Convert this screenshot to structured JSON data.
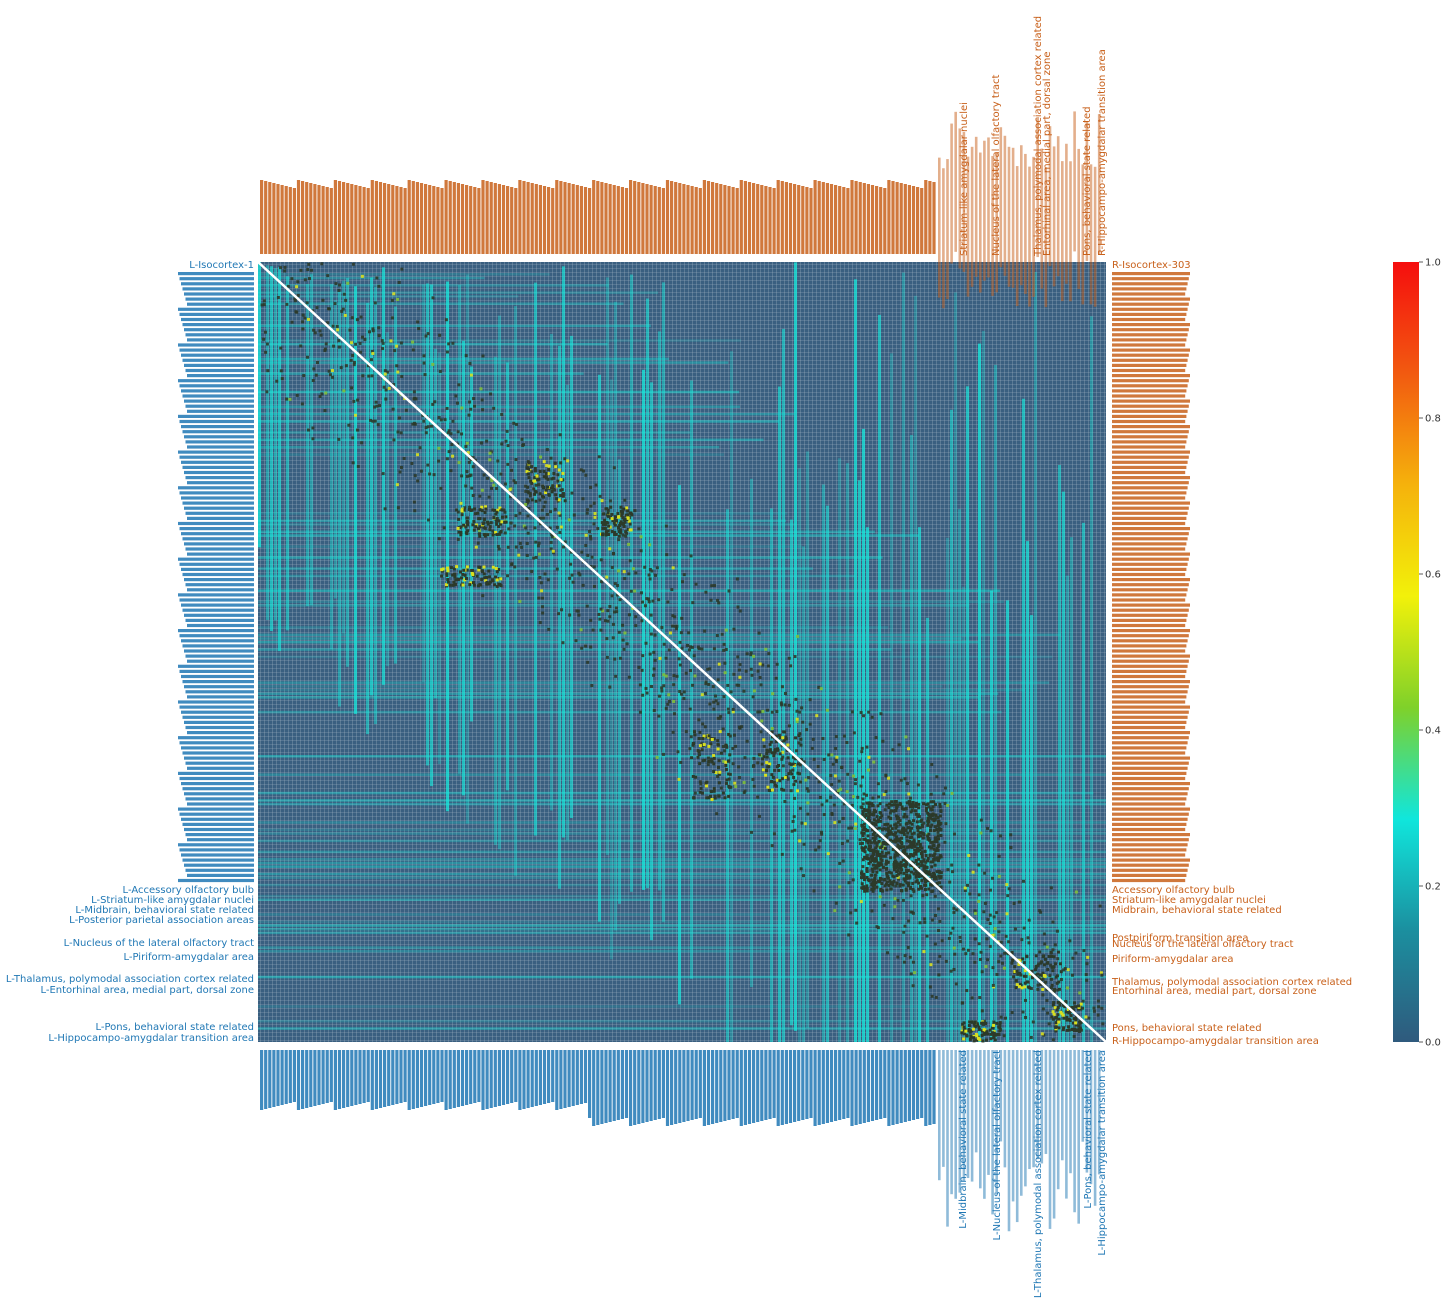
{
  "colors": {
    "left_label": "#1f77b4",
    "right_label": "#c8601a",
    "background_cell": "#3a5f80",
    "grid_line": "#ffffff"
  },
  "chart_data": {
    "type": "heatmap",
    "title": "",
    "grid": true,
    "value_range": [
      0,
      1
    ],
    "colorbar": {
      "ticks": [
        0.0,
        0.2,
        0.4,
        0.6,
        0.8,
        1.0
      ],
      "tick_labels": [
        "0.0",
        "0.2",
        "0.4",
        "0.6",
        "0.8",
        "1.0"
      ],
      "stops": [
        "#2f5a7d",
        "#1b8f9f",
        "#10e6dc",
        "#7fd12a",
        "#f2f10a",
        "#f5b20c",
        "#f25a10",
        "#f50e0e"
      ],
      "placement": "right"
    },
    "left_labels_visible": [
      "L-Isocortex-1",
      "L-Accessory olfactory bulb",
      "L-Striatum-like amygdalar nuclei",
      "L-Midbrain, behavioral state related",
      "L-Posterior parietal association areas",
      "L-Nucleus of the lateral olfactory tract",
      "L-Piriform-amygdalar area",
      "L-Thalamus, polymodal association cortex related",
      "L-Entorhinal area, medial part, dorsal zone",
      "L-Pons, behavioral state related",
      "L-Hippocampo-amygdalar transition area"
    ],
    "right_labels_visible": [
      "R-Isocortex-303",
      "Accessory olfactory bulb",
      "Striatum-like amygdalar nuclei",
      "Midbrain, behavioral state related",
      "Postpiriform transition area",
      "Nucleus of the lateral olfactory tract",
      "Piriform-amygdalar area",
      "Thalamus, polymodal association cortex related",
      "Entorhinal area, medial part, dorsal zone",
      "Pons, behavioral state related",
      "R-Hippocampo-amygdalar transition area"
    ]
  }
}
